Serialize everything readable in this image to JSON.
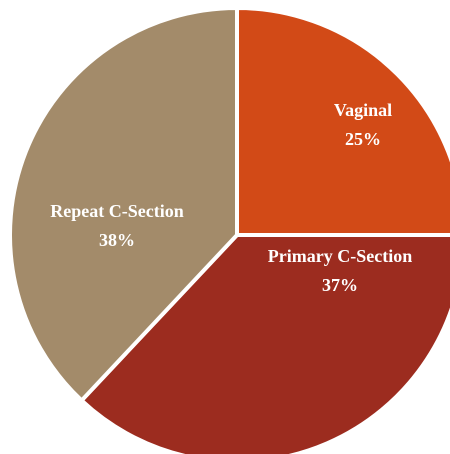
{
  "chart_data": {
    "type": "pie",
    "categories": [
      "Vaginal",
      "Primary C-Section",
      "Repeat C-Section"
    ],
    "values": [
      25,
      37,
      38
    ],
    "value_labels": [
      "25%",
      "37%",
      "38%"
    ],
    "colors": [
      "#D24A17",
      "#9C2C1F",
      "#A38B6A"
    ]
  }
}
